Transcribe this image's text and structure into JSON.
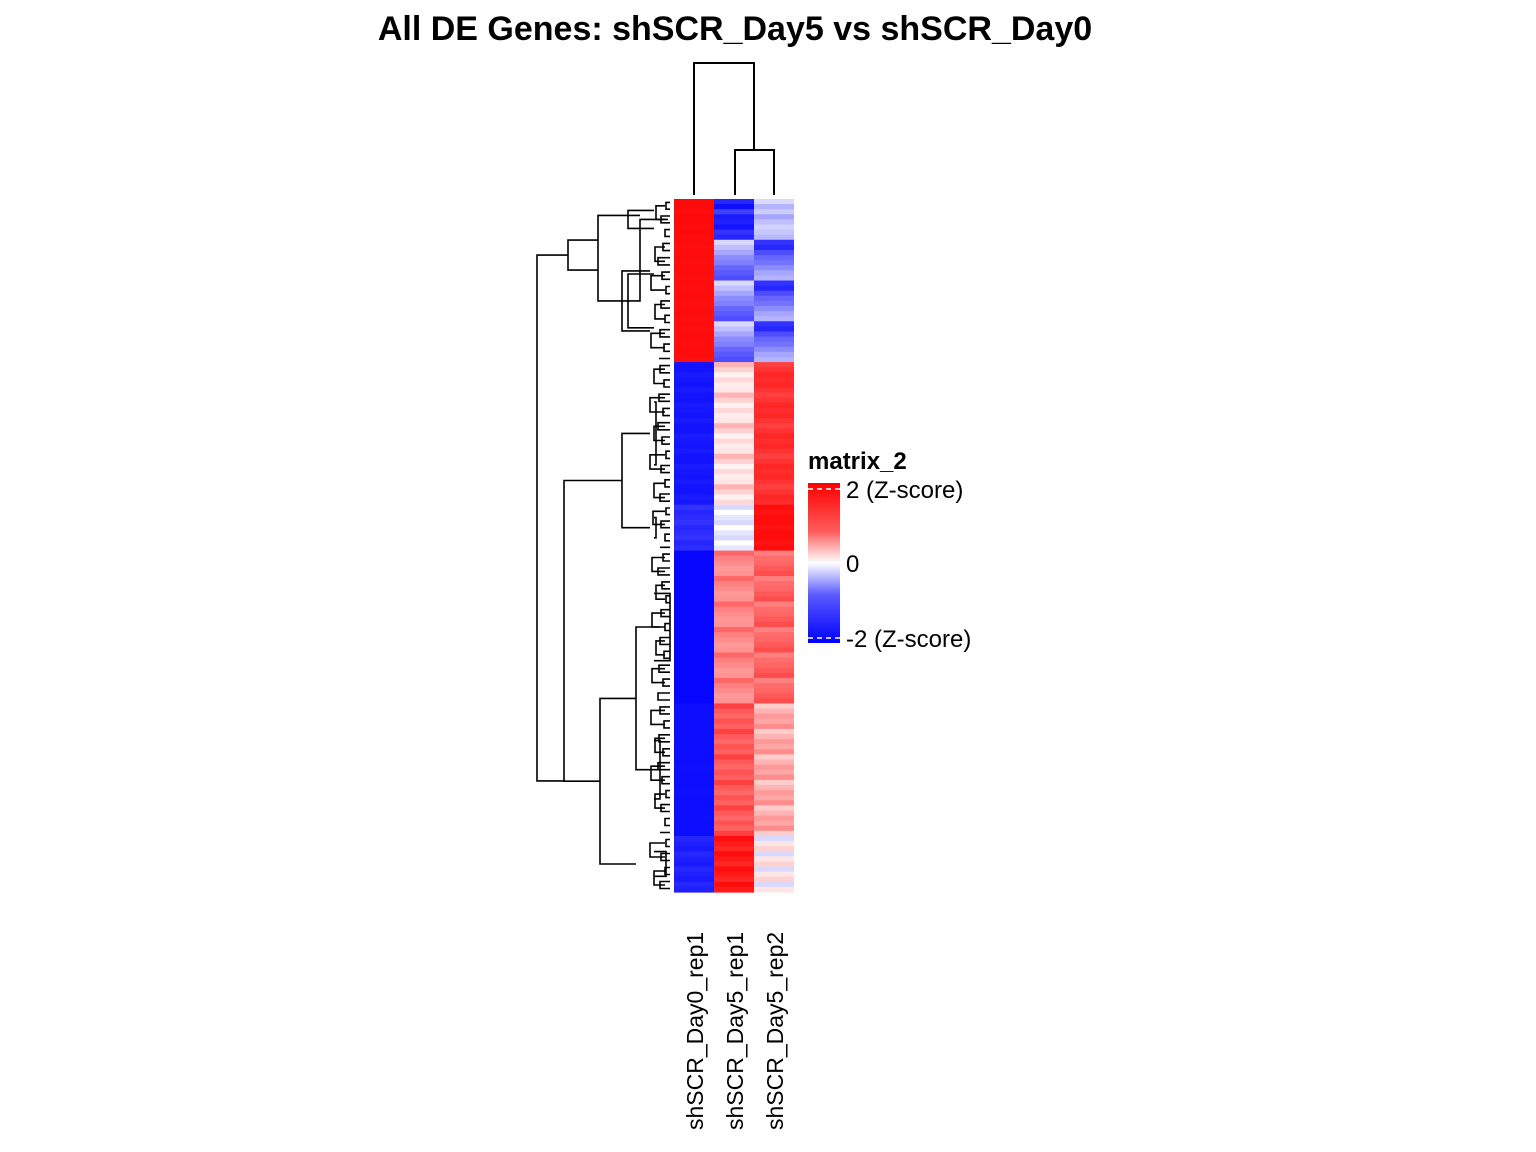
{
  "chart_data": {
    "type": "heatmap",
    "title": "All DE Genes: shSCR_Day5  vs  shSCR_Day0",
    "columns": [
      "shSCR_Day0_rep1",
      "shSCR_Day5_rep1",
      "shSCR_Day5_rep2"
    ],
    "column_dendrogram": "shSCR_Day0_rep1 joined last with cluster (shSCR_Day5_rep1, shSCR_Day5_rep2)",
    "row_dendrogram": true,
    "color_scale": {
      "min": -2,
      "mid": 0,
      "max": 2,
      "low_color": "#0000ff",
      "mid_color": "#ffffff",
      "high_color": "#ff0000"
    },
    "legend": {
      "title": "matrix_2",
      "position": "right",
      "labels": [
        "2 (Z-score)",
        "0",
        "-2 (Z-score)"
      ],
      "values": [
        2,
        0,
        -2
      ]
    },
    "row_blocks": [
      {
        "rows": 8,
        "values": [
          [
            1.92,
            -1.7,
            -0.3
          ],
          [
            1.92,
            -1.9,
            -0.6
          ],
          [
            1.9,
            -1.5,
            -0.4
          ],
          [
            1.92,
            -1.8,
            -0.7
          ],
          [
            1.92,
            -1.75,
            -0.5
          ],
          [
            1.9,
            -1.85,
            -0.35
          ],
          [
            1.92,
            -1.6,
            -0.45
          ],
          [
            1.9,
            -1.7,
            -0.55
          ]
        ]
      },
      {
        "rows": 24,
        "values": [
          [
            1.9,
            -0.3,
            -1.6
          ],
          [
            1.88,
            -0.5,
            -1.7
          ],
          [
            1.9,
            -0.7,
            -1.4
          ],
          [
            1.9,
            -0.9,
            -1.2
          ],
          [
            1.88,
            -1.0,
            -1.1
          ],
          [
            1.9,
            -1.2,
            -0.9
          ],
          [
            1.9,
            -1.3,
            -0.7
          ],
          [
            1.88,
            -1.4,
            -0.6
          ]
        ]
      },
      {
        "rows": 28,
        "values": [
          [
            -1.85,
            0.6,
            1.5
          ],
          [
            -1.85,
            0.35,
            1.6
          ],
          [
            -1.8,
            0.1,
            1.7
          ],
          [
            -1.82,
            0.3,
            1.65
          ],
          [
            -1.85,
            0.15,
            1.7
          ],
          [
            -1.8,
            0.2,
            1.6
          ]
        ]
      },
      {
        "rows": 9,
        "values": [
          [
            -1.6,
            -0.3,
            1.9
          ],
          [
            -1.7,
            0.0,
            1.85
          ],
          [
            -1.65,
            -0.2,
            1.9
          ]
        ]
      },
      {
        "rows": 30,
        "values": [
          [
            -1.95,
            1.2,
            1.0
          ],
          [
            -1.95,
            1.0,
            1.15
          ],
          [
            -1.95,
            0.9,
            1.2
          ],
          [
            -1.95,
            0.8,
            1.3
          ],
          [
            -1.95,
            0.85,
            1.4
          ]
        ]
      },
      {
        "rows": 26,
        "values": [
          [
            -1.9,
            1.5,
            0.4
          ],
          [
            -1.9,
            1.3,
            0.6
          ],
          [
            -1.88,
            1.2,
            0.8
          ],
          [
            -1.9,
            1.35,
            0.7
          ],
          [
            -1.9,
            1.25,
            0.9
          ]
        ]
      },
      {
        "rows": 11,
        "values": [
          [
            -1.7,
            1.9,
            -0.3
          ],
          [
            -1.75,
            1.8,
            0.2
          ],
          [
            -1.8,
            1.7,
            0.35
          ]
        ]
      }
    ]
  }
}
